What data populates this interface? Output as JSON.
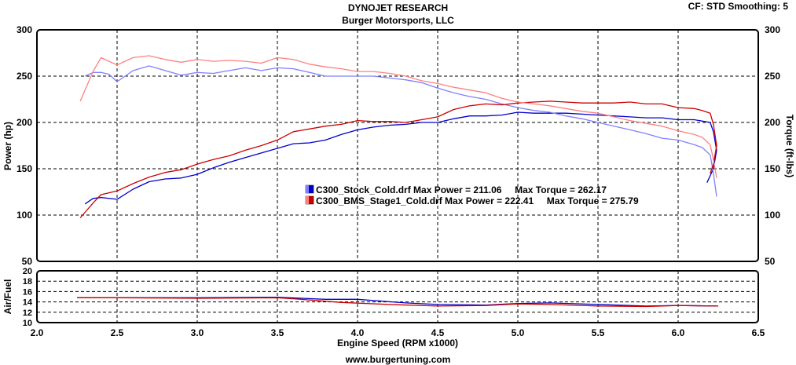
{
  "header": {
    "title": "DYNOJET RESEARCH",
    "subtitle": "Burger Motorsports, LLC",
    "settings": "CF: STD  Smoothing: 5"
  },
  "footer": {
    "url": "www.burgertuning.com"
  },
  "chart_data": [
    {
      "type": "line",
      "name": "power-torque",
      "xlim": [
        2.0,
        6.5
      ],
      "ylim": [
        50,
        300
      ],
      "y2lim": [
        50,
        300
      ],
      "xticks": [
        "2.0",
        "2.5",
        "3.0",
        "3.5",
        "4.0",
        "4.5",
        "5.0",
        "5.5",
        "6.0",
        "6.5"
      ],
      "yticks": [
        "300",
        "250",
        "200",
        "150",
        "100",
        "50"
      ],
      "y2ticks": [
        "300",
        "250",
        "200",
        "150",
        "100",
        "50"
      ],
      "ylabel": "Power (hp)",
      "y2label": "Torque (ft-lbs)",
      "grid": true,
      "legend_position": "center",
      "legend": [
        {
          "file": "C300_Stock_Cold.drf",
          "text": "Max Power = 211.06     Max Torque = 262.17",
          "color": "#0000cc",
          "light_color": "#8080ff"
        },
        {
          "file": "C300_BMS_Stage1_Cold.drf",
          "text": "Max Power = 222.41     Max Torque = 275.79",
          "color": "#cc0000",
          "light_color": "#ff8080"
        }
      ],
      "series": [
        {
          "name": "C300_Stock_Cold.drf",
          "measure": "Power",
          "color": "#0000cc",
          "x": [
            2.3,
            2.35,
            2.4,
            2.5,
            2.6,
            2.7,
            2.8,
            2.9,
            3.0,
            3.1,
            3.2,
            3.3,
            3.4,
            3.5,
            3.6,
            3.7,
            3.8,
            3.9,
            4.0,
            4.1,
            4.2,
            4.3,
            4.4,
            4.5,
            4.6,
            4.7,
            4.8,
            4.9,
            5.0,
            5.1,
            5.2,
            5.3,
            5.4,
            5.5,
            5.6,
            5.7,
            5.8,
            5.9,
            6.0,
            6.1,
            6.2,
            6.22,
            6.24,
            6.22,
            6.18
          ],
          "y": [
            112,
            118,
            119,
            117,
            128,
            136,
            139,
            140,
            144,
            151,
            157,
            162,
            167,
            172,
            177,
            178,
            181,
            187,
            192,
            195,
            197,
            198,
            200,
            200,
            204,
            207,
            207,
            208,
            211,
            210,
            210,
            210,
            209,
            208,
            207,
            206,
            205,
            205,
            203,
            203,
            200,
            190,
            170,
            150,
            135
          ]
        },
        {
          "name": "C300_Stock_Cold.drf",
          "measure": "Torque",
          "color": "#8080ff",
          "x": [
            2.3,
            2.35,
            2.4,
            2.45,
            2.5,
            2.6,
            2.7,
            2.8,
            2.9,
            3.0,
            3.1,
            3.2,
            3.3,
            3.4,
            3.5,
            3.6,
            3.7,
            3.8,
            3.9,
            4.0,
            4.1,
            4.2,
            4.3,
            4.4,
            4.5,
            4.6,
            4.7,
            4.8,
            4.9,
            5.0,
            5.1,
            5.2,
            5.3,
            5.4,
            5.5,
            5.6,
            5.7,
            5.8,
            5.9,
            6.0,
            6.1,
            6.15,
            6.2,
            6.22,
            6.24
          ],
          "y": [
            250,
            254,
            254,
            252,
            244,
            256,
            261,
            256,
            251,
            254,
            253,
            256,
            259,
            256,
            259,
            258,
            254,
            250,
            250,
            250,
            250,
            248,
            246,
            243,
            237,
            232,
            228,
            225,
            220,
            216,
            213,
            211,
            207,
            204,
            200,
            196,
            192,
            188,
            183,
            181,
            176,
            173,
            165,
            145,
            120
          ]
        },
        {
          "name": "C300_BMS_Stage1_Cold.drf",
          "measure": "Power",
          "color": "#cc0000",
          "x": [
            2.27,
            2.3,
            2.35,
            2.4,
            2.5,
            2.6,
            2.7,
            2.8,
            2.9,
            3.0,
            3.1,
            3.2,
            3.3,
            3.4,
            3.5,
            3.6,
            3.7,
            3.8,
            3.9,
            4.0,
            4.1,
            4.2,
            4.3,
            4.4,
            4.5,
            4.6,
            4.7,
            4.8,
            4.9,
            5.0,
            5.1,
            5.2,
            5.3,
            5.4,
            5.5,
            5.6,
            5.7,
            5.8,
            5.9,
            6.0,
            6.1,
            6.15,
            6.2,
            6.22,
            6.24,
            6.22,
            6.2
          ],
          "y": [
            97,
            103,
            113,
            122,
            126,
            134,
            141,
            146,
            149,
            155,
            160,
            164,
            170,
            175,
            181,
            190,
            193,
            196,
            198,
            202,
            201,
            201,
            200,
            203,
            206,
            214,
            218,
            220,
            219,
            221,
            222,
            223,
            222,
            221,
            221,
            221,
            222,
            220,
            220,
            216,
            215,
            213,
            210,
            198,
            175,
            155,
            145
          ]
        },
        {
          "name": "C300_BMS_Stage1_Cold.drf",
          "measure": "Torque",
          "color": "#ff8080",
          "x": [
            2.27,
            2.3,
            2.35,
            2.4,
            2.45,
            2.5,
            2.6,
            2.7,
            2.8,
            2.9,
            3.0,
            3.1,
            3.2,
            3.3,
            3.4,
            3.5,
            3.6,
            3.7,
            3.8,
            3.9,
            4.0,
            4.1,
            4.2,
            4.3,
            4.4,
            4.5,
            4.6,
            4.7,
            4.8,
            4.9,
            5.0,
            5.1,
            5.2,
            5.3,
            5.4,
            5.5,
            5.6,
            5.7,
            5.8,
            5.9,
            6.0,
            6.1,
            6.15,
            6.2,
            6.22,
            6.24
          ],
          "y": [
            223,
            235,
            255,
            270,
            266,
            262,
            270,
            272,
            268,
            265,
            268,
            266,
            267,
            266,
            264,
            270,
            268,
            263,
            260,
            258,
            255,
            255,
            253,
            250,
            245,
            242,
            238,
            235,
            232,
            226,
            222,
            220,
            218,
            215,
            212,
            210,
            206,
            202,
            199,
            196,
            191,
            187,
            184,
            176,
            160,
            140
          ]
        }
      ]
    },
    {
      "type": "line",
      "name": "air-fuel",
      "xlim": [
        2.0,
        6.5
      ],
      "ylim": [
        10,
        20
      ],
      "xticks": [
        "2.0",
        "2.5",
        "3.0",
        "3.5",
        "4.0",
        "4.5",
        "5.0",
        "5.5",
        "6.0",
        "6.5"
      ],
      "yticks": [
        "20",
        "18",
        "16",
        "14",
        "12",
        "10"
      ],
      "ylabel": "Air/Fuel",
      "xlabel": "Engine Speed (RPM x1000)",
      "grid": true,
      "series": [
        {
          "name": "C300_Stock_Cold.drf",
          "color": "#0000cc",
          "x": [
            2.25,
            2.5,
            3.0,
            3.5,
            3.8,
            4.0,
            4.3,
            4.5,
            4.8,
            5.0,
            5.2,
            5.5,
            5.8,
            6.0,
            6.25
          ],
          "y": [
            14.8,
            14.8,
            14.8,
            14.9,
            14.5,
            14.5,
            13.8,
            13.5,
            13.4,
            13.7,
            13.8,
            13.5,
            13.2,
            13.3,
            13.2
          ]
        },
        {
          "name": "C300_BMS_Stage1_Cold.drf",
          "color": "#cc0000",
          "x": [
            2.25,
            2.5,
            3.0,
            3.5,
            3.6,
            3.9,
            4.2,
            4.5,
            4.8,
            5.0,
            5.2,
            5.5,
            5.8,
            6.0,
            6.25
          ],
          "y": [
            14.8,
            14.8,
            14.7,
            14.8,
            14.6,
            13.9,
            13.5,
            13.2,
            13.3,
            13.6,
            13.5,
            13.2,
            13.1,
            13.3,
            13.2
          ]
        }
      ]
    }
  ]
}
